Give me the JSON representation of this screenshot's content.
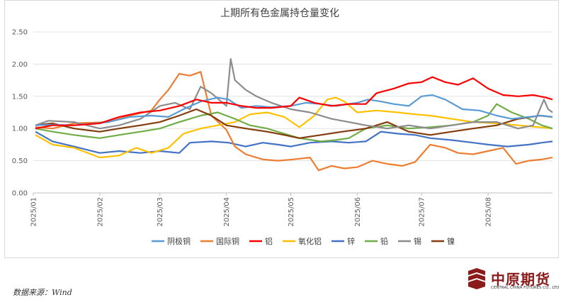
{
  "chart_data": {
    "type": "line",
    "title": "上期所有色金属持仓量变化",
    "xlabel": "",
    "ylabel": "",
    "ylim": [
      0,
      2.5
    ],
    "yticks": [
      "0.00",
      "0.50",
      "1.00",
      "1.50",
      "2.00",
      "2.50"
    ],
    "xlim": [
      "2025/01/01",
      "2025/08/31"
    ],
    "xticks": [
      "2025/01",
      "2025/02",
      "2025/03",
      "2025/04",
      "2025/05",
      "2025/06",
      "2025/07",
      "2025/08"
    ],
    "grid": "horizontal",
    "legend_position": "bottom",
    "series": [
      {
        "name": "阴极铜",
        "color": "#5B9BD5",
        "points": [
          [
            "2025/01/02",
            1.05
          ],
          [
            "2025/01/10",
            1.06
          ],
          [
            "2025/01/20",
            1.05
          ],
          [
            "2025/02/05",
            1.1
          ],
          [
            "2025/02/15",
            1.18
          ],
          [
            "2025/02/25",
            1.2
          ],
          [
            "2025/03/05",
            1.18
          ],
          [
            "2025/03/12",
            1.3
          ],
          [
            "2025/03/20",
            1.42
          ],
          [
            "2025/03/28",
            1.48
          ],
          [
            "2025/04/02",
            1.45
          ],
          [
            "2025/04/08",
            1.32
          ],
          [
            "2025/04/15",
            1.35
          ],
          [
            "2025/04/22",
            1.33
          ],
          [
            "2025/05/01",
            1.35
          ],
          [
            "2025/05/08",
            1.4
          ],
          [
            "2025/05/15",
            1.38
          ],
          [
            "2025/05/22",
            1.35
          ],
          [
            "2025/06/01",
            1.4
          ],
          [
            "2025/06/06",
            1.45
          ],
          [
            "2025/06/12",
            1.42
          ],
          [
            "2025/06/18",
            1.38
          ],
          [
            "2025/06/25",
            1.35
          ],
          [
            "2025/07/01",
            1.5
          ],
          [
            "2025/07/06",
            1.52
          ],
          [
            "2025/07/12",
            1.45
          ],
          [
            "2025/07/20",
            1.3
          ],
          [
            "2025/07/28",
            1.28
          ],
          [
            "2025/08/05",
            1.2
          ],
          [
            "2025/08/12",
            1.15
          ],
          [
            "2025/08/20",
            1.18
          ],
          [
            "2025/08/26",
            1.2
          ],
          [
            "2025/08/31",
            1.18
          ]
        ]
      },
      {
        "name": "国际铜",
        "color": "#ED7D31",
        "points": [
          [
            "2025/01/02",
            1.02
          ],
          [
            "2025/01/10",
            1.0
          ],
          [
            "2025/01/20",
            1.08
          ],
          [
            "2025/02/05",
            1.1
          ],
          [
            "2025/02/15",
            1.2
          ],
          [
            "2025/02/25",
            1.28
          ],
          [
            "2025/03/01",
            1.45
          ],
          [
            "2025/03/05",
            1.6
          ],
          [
            "2025/03/10",
            1.85
          ],
          [
            "2025/03/15",
            1.82
          ],
          [
            "2025/03/20",
            1.88
          ],
          [
            "2025/03/25",
            1.2
          ],
          [
            "2025/04/01",
            0.98
          ],
          [
            "2025/04/05",
            0.72
          ],
          [
            "2025/04/10",
            0.6
          ],
          [
            "2025/04/18",
            0.52
          ],
          [
            "2025/04/25",
            0.5
          ],
          [
            "2025/05/02",
            0.52
          ],
          [
            "2025/05/10",
            0.55
          ],
          [
            "2025/05/14",
            0.35
          ],
          [
            "2025/05/20",
            0.42
          ],
          [
            "2025/05/26",
            0.38
          ],
          [
            "2025/06/01",
            0.4
          ],
          [
            "2025/06/08",
            0.5
          ],
          [
            "2025/06/15",
            0.45
          ],
          [
            "2025/06/22",
            0.42
          ],
          [
            "2025/06/28",
            0.48
          ],
          [
            "2025/07/05",
            0.75
          ],
          [
            "2025/07/12",
            0.7
          ],
          [
            "2025/07/18",
            0.62
          ],
          [
            "2025/07/25",
            0.6
          ],
          [
            "2025/08/01",
            0.65
          ],
          [
            "2025/08/08",
            0.7
          ],
          [
            "2025/08/14",
            0.45
          ],
          [
            "2025/08/20",
            0.5
          ],
          [
            "2025/08/26",
            0.52
          ],
          [
            "2025/08/31",
            0.55
          ]
        ]
      },
      {
        "name": "铝",
        "color": "#FF0000",
        "points": [
          [
            "2025/01/02",
            1.0
          ],
          [
            "2025/01/10",
            1.05
          ],
          [
            "2025/01/20",
            1.05
          ],
          [
            "2025/02/01",
            1.08
          ],
          [
            "2025/02/10",
            1.18
          ],
          [
            "2025/02/20",
            1.25
          ],
          [
            "2025/03/01",
            1.28
          ],
          [
            "2025/03/10",
            1.35
          ],
          [
            "2025/03/18",
            1.45
          ],
          [
            "2025/03/25",
            1.4
          ],
          [
            "2025/04/01",
            1.4
          ],
          [
            "2025/04/08",
            1.35
          ],
          [
            "2025/04/15",
            1.32
          ],
          [
            "2025/04/22",
            1.32
          ],
          [
            "2025/05/01",
            1.35
          ],
          [
            "2025/05/05",
            1.48
          ],
          [
            "2025/05/12",
            1.4
          ],
          [
            "2025/05/20",
            1.35
          ],
          [
            "2025/05/28",
            1.38
          ],
          [
            "2025/06/05",
            1.38
          ],
          [
            "2025/06/10",
            1.55
          ],
          [
            "2025/06/18",
            1.62
          ],
          [
            "2025/06/25",
            1.7
          ],
          [
            "2025/07/01",
            1.72
          ],
          [
            "2025/07/06",
            1.8
          ],
          [
            "2025/07/12",
            1.72
          ],
          [
            "2025/07/18",
            1.68
          ],
          [
            "2025/07/25",
            1.78
          ],
          [
            "2025/08/01",
            1.62
          ],
          [
            "2025/08/08",
            1.52
          ],
          [
            "2025/08/15",
            1.5
          ],
          [
            "2025/08/22",
            1.52
          ],
          [
            "2025/08/28",
            1.48
          ],
          [
            "2025/08/31",
            1.45
          ]
        ]
      },
      {
        "name": "氧化铝",
        "color": "#FFC000",
        "points": [
          [
            "2025/01/02",
            0.9
          ],
          [
            "2025/01/10",
            0.75
          ],
          [
            "2025/01/20",
            0.7
          ],
          [
            "2025/02/01",
            0.55
          ],
          [
            "2025/02/10",
            0.58
          ],
          [
            "2025/02/18",
            0.7
          ],
          [
            "2025/02/25",
            0.62
          ],
          [
            "2025/03/05",
            0.7
          ],
          [
            "2025/03/12",
            0.92
          ],
          [
            "2025/03/20",
            1.0
          ],
          [
            "2025/03/28",
            1.05
          ],
          [
            "2025/04/05",
            1.1
          ],
          [
            "2025/04/12",
            1.22
          ],
          [
            "2025/04/20",
            1.25
          ],
          [
            "2025/04/28",
            1.18
          ],
          [
            "2025/05/05",
            1.02
          ],
          [
            "2025/05/12",
            1.2
          ],
          [
            "2025/05/18",
            1.45
          ],
          [
            "2025/05/22",
            1.48
          ],
          [
            "2025/05/26",
            1.42
          ],
          [
            "2025/06/01",
            1.25
          ],
          [
            "2025/06/10",
            1.28
          ],
          [
            "2025/06/20",
            1.25
          ],
          [
            "2025/06/28",
            1.22
          ],
          [
            "2025/07/05",
            1.2
          ],
          [
            "2025/07/15",
            1.15
          ],
          [
            "2025/07/25",
            1.1
          ],
          [
            "2025/08/05",
            1.08
          ],
          [
            "2025/08/15",
            1.05
          ],
          [
            "2025/08/25",
            1.02
          ],
          [
            "2025/08/31",
            1.0
          ]
        ]
      },
      {
        "name": "锌",
        "color": "#4472C4",
        "points": [
          [
            "2025/01/02",
            0.95
          ],
          [
            "2025/01/10",
            0.8
          ],
          [
            "2025/01/20",
            0.72
          ],
          [
            "2025/02/01",
            0.62
          ],
          [
            "2025/02/10",
            0.65
          ],
          [
            "2025/02/20",
            0.62
          ],
          [
            "2025/03/01",
            0.65
          ],
          [
            "2025/03/10",
            0.62
          ],
          [
            "2025/03/15",
            0.78
          ],
          [
            "2025/03/25",
            0.8
          ],
          [
            "2025/04/02",
            0.78
          ],
          [
            "2025/04/10",
            0.72
          ],
          [
            "2025/04/18",
            0.78
          ],
          [
            "2025/04/25",
            0.75
          ],
          [
            "2025/05/01",
            0.72
          ],
          [
            "2025/05/10",
            0.78
          ],
          [
            "2025/05/20",
            0.8
          ],
          [
            "2025/05/28",
            0.78
          ],
          [
            "2025/06/05",
            0.8
          ],
          [
            "2025/06/12",
            0.95
          ],
          [
            "2025/06/20",
            0.92
          ],
          [
            "2025/06/28",
            0.9
          ],
          [
            "2025/07/05",
            0.85
          ],
          [
            "2025/07/15",
            0.82
          ],
          [
            "2025/07/25",
            0.78
          ],
          [
            "2025/08/01",
            0.75
          ],
          [
            "2025/08/10",
            0.72
          ],
          [
            "2025/08/20",
            0.75
          ],
          [
            "2025/08/26",
            0.78
          ],
          [
            "2025/08/31",
            0.8
          ]
        ]
      },
      {
        "name": "铅",
        "color": "#70AD47",
        "points": [
          [
            "2025/01/02",
            1.0
          ],
          [
            "2025/01/10",
            0.95
          ],
          [
            "2025/01/20",
            0.9
          ],
          [
            "2025/02/01",
            0.85
          ],
          [
            "2025/02/10",
            0.9
          ],
          [
            "2025/02/20",
            0.95
          ],
          [
            "2025/03/01",
            1.0
          ],
          [
            "2025/03/10",
            1.1
          ],
          [
            "2025/03/20",
            1.2
          ],
          [
            "2025/03/28",
            1.25
          ],
          [
            "2025/04/05",
            1.15
          ],
          [
            "2025/04/12",
            1.05
          ],
          [
            "2025/04/20",
            1.0
          ],
          [
            "2025/04/28",
            0.92
          ],
          [
            "2025/05/05",
            0.85
          ],
          [
            "2025/05/15",
            0.8
          ],
          [
            "2025/05/22",
            0.82
          ],
          [
            "2025/05/28",
            0.85
          ],
          [
            "2025/06/05",
            1.0
          ],
          [
            "2025/06/15",
            1.05
          ],
          [
            "2025/06/25",
            1.0
          ],
          [
            "2025/07/05",
            1.02
          ],
          [
            "2025/07/15",
            1.05
          ],
          [
            "2025/07/25",
            1.1
          ],
          [
            "2025/08/01",
            1.2
          ],
          [
            "2025/08/05",
            1.38
          ],
          [
            "2025/08/12",
            1.25
          ],
          [
            "2025/08/20",
            1.15
          ],
          [
            "2025/08/26",
            1.05
          ],
          [
            "2025/08/31",
            1.0
          ]
        ]
      },
      {
        "name": "锡",
        "color": "#8C8C8C",
        "points": [
          [
            "2025/01/02",
            1.05
          ],
          [
            "2025/01/08",
            1.12
          ],
          [
            "2025/01/20",
            1.1
          ],
          [
            "2025/02/01",
            1.0
          ],
          [
            "2025/02/10",
            1.05
          ],
          [
            "2025/02/20",
            1.15
          ],
          [
            "2025/03/01",
            1.35
          ],
          [
            "2025/03/08",
            1.4
          ],
          [
            "2025/03/15",
            1.3
          ],
          [
            "2025/03/20",
            1.65
          ],
          [
            "2025/03/25",
            1.55
          ],
          [
            "2025/04/01",
            1.35
          ],
          [
            "2025/04/03",
            2.08
          ],
          [
            "2025/04/05",
            1.75
          ],
          [
            "2025/04/10",
            1.6
          ],
          [
            "2025/04/15",
            1.5
          ],
          [
            "2025/04/22",
            1.4
          ],
          [
            "2025/05/01",
            1.3
          ],
          [
            "2025/05/10",
            1.25
          ],
          [
            "2025/05/20",
            1.15
          ],
          [
            "2025/05/28",
            1.1
          ],
          [
            "2025/06/05",
            1.05
          ],
          [
            "2025/06/15",
            1.0
          ],
          [
            "2025/06/25",
            1.05
          ],
          [
            "2025/07/05",
            1.0
          ],
          [
            "2025/07/15",
            1.05
          ],
          [
            "2025/07/25",
            1.1
          ],
          [
            "2025/08/05",
            1.1
          ],
          [
            "2025/08/15",
            1.0
          ],
          [
            "2025/08/22",
            1.05
          ],
          [
            "2025/08/27",
            1.45
          ],
          [
            "2025/08/29",
            1.3
          ],
          [
            "2025/08/31",
            1.25
          ]
        ]
      },
      {
        "name": "镍",
        "color": "#843C0C",
        "points": [
          [
            "2025/01/02",
            1.05
          ],
          [
            "2025/01/10",
            1.08
          ],
          [
            "2025/01/20",
            1.0
          ],
          [
            "2025/02/01",
            0.95
          ],
          [
            "2025/02/10",
            1.0
          ],
          [
            "2025/02/20",
            1.05
          ],
          [
            "2025/03/01",
            1.1
          ],
          [
            "2025/03/10",
            1.2
          ],
          [
            "2025/03/18",
            1.3
          ],
          [
            "2025/03/25",
            1.2
          ],
          [
            "2025/04/01",
            1.05
          ],
          [
            "2025/04/10",
            1.0
          ],
          [
            "2025/04/20",
            0.95
          ],
          [
            "2025/04/28",
            0.9
          ],
          [
            "2025/05/05",
            0.85
          ],
          [
            "2025/05/15",
            0.9
          ],
          [
            "2025/05/25",
            0.95
          ],
          [
            "2025/06/05",
            1.0
          ],
          [
            "2025/06/15",
            1.1
          ],
          [
            "2025/06/25",
            0.95
          ],
          [
            "2025/07/05",
            0.9
          ],
          [
            "2025/07/15",
            0.95
          ],
          [
            "2025/07/25",
            1.0
          ],
          [
            "2025/08/05",
            1.05
          ],
          [
            "2025/08/15",
            1.15
          ],
          [
            "2025/08/25",
            1.2
          ],
          [
            "2025/08/31",
            1.18
          ]
        ]
      }
    ]
  },
  "source_text": "数据来源：Wind",
  "logo": {
    "cn": "中原期货",
    "en": "CENTRAL CHINA FUTURES CO., LTD",
    "color": "#8B1A1A"
  }
}
